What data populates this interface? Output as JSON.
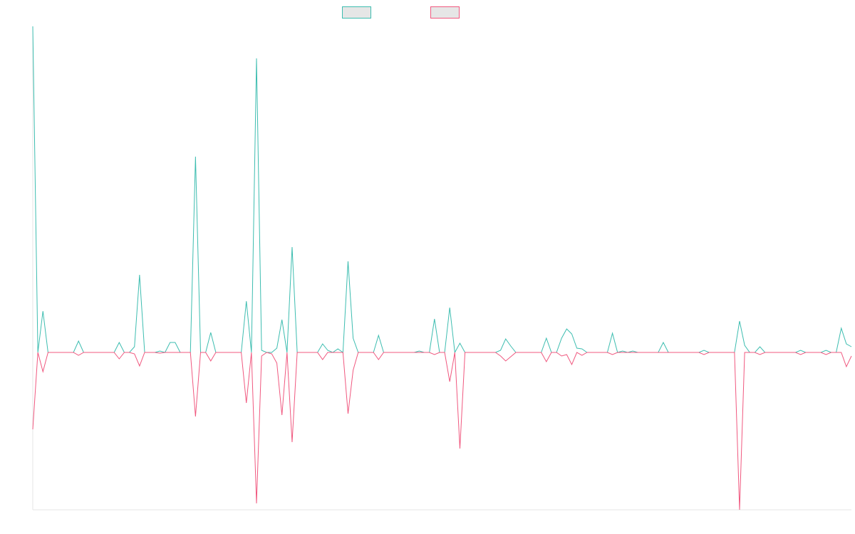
{
  "chart_data": {
    "type": "line",
    "categories": [
      null,
      null,
      null,
      null,
      null,
      null,
      null,
      null,
      null,
      null,
      null,
      null,
      null,
      null,
      null,
      null,
      null,
      null,
      null,
      null,
      null,
      null,
      null,
      null,
      null,
      null,
      null,
      null,
      null,
      null,
      null,
      null,
      null,
      null,
      null,
      null,
      null,
      null,
      null,
      null,
      null,
      null,
      null,
      null,
      null,
      null,
      null,
      null,
      null,
      null,
      null,
      null,
      null,
      null,
      null,
      null,
      null,
      null,
      null,
      null,
      null,
      null,
      null,
      null,
      null,
      null,
      null,
      null,
      null,
      null,
      null,
      null,
      null,
      null,
      null,
      null,
      null,
      null,
      null,
      null,
      null,
      null,
      null,
      null,
      null,
      null,
      null,
      null,
      null,
      null,
      null,
      null,
      null,
      null,
      null,
      null,
      null,
      null,
      null,
      null,
      null,
      null,
      null,
      null,
      null,
      null,
      null,
      null,
      null,
      null,
      null,
      null,
      null,
      null,
      null,
      null,
      null,
      null,
      null,
      null,
      null,
      null,
      null,
      null,
      null,
      null,
      null,
      null,
      null,
      null,
      null,
      null,
      null,
      null,
      null,
      null,
      null,
      null,
      null,
      null,
      null,
      null,
      null,
      null,
      null,
      null,
      null,
      null,
      null,
      null,
      null,
      null,
      null,
      null,
      null,
      null,
      null,
      null,
      null,
      null,
      null,
      null
    ],
    "series": [
      {
        "color": "#3dbdb0",
        "values": [
          458,
          0,
          58,
          0,
          0,
          0,
          0,
          0,
          0,
          16,
          0,
          0,
          0,
          0,
          0,
          0,
          0,
          14,
          0,
          0,
          8,
          109,
          0,
          0,
          0,
          2,
          0,
          14,
          14,
          0,
          0,
          0,
          275,
          0,
          0,
          28,
          0,
          0,
          0,
          0,
          0,
          0,
          72,
          0,
          413,
          3,
          0,
          0,
          6,
          46,
          0,
          148,
          0,
          0,
          0,
          0,
          0,
          12,
          3,
          0,
          5,
          0,
          128,
          20,
          0,
          0,
          0,
          0,
          24,
          0,
          0,
          0,
          0,
          0,
          0,
          0,
          2,
          0,
          0,
          47,
          0,
          0,
          63,
          0,
          13,
          0,
          0,
          0,
          0,
          0,
          0,
          0,
          3,
          19,
          9,
          0,
          0,
          0,
          0,
          0,
          0,
          20,
          0,
          0,
          20,
          33,
          26,
          6,
          5,
          0,
          0,
          0,
          0,
          0,
          27,
          0,
          2,
          0,
          2,
          0,
          0,
          0,
          0,
          0,
          14,
          0,
          0,
          0,
          0,
          0,
          0,
          0,
          3,
          0,
          0,
          0,
          0,
          0,
          0,
          44,
          10,
          0,
          0,
          8,
          0,
          0,
          0,
          0,
          0,
          0,
          0,
          3,
          0,
          0,
          0,
          0,
          3,
          0,
          0,
          34,
          12,
          8
        ]
      },
      {
        "color": "#f0587f",
        "values": [
          -108,
          0,
          -27,
          0,
          0,
          0,
          0,
          0,
          0,
          -4,
          0,
          0,
          0,
          0,
          0,
          0,
          0,
          -9,
          0,
          0,
          -2,
          -19,
          0,
          0,
          0,
          -1,
          0,
          0,
          0,
          0,
          0,
          0,
          -90,
          0,
          0,
          -12,
          0,
          0,
          0,
          0,
          0,
          0,
          -71,
          0,
          -212,
          -5,
          0,
          -2,
          -15,
          -88,
          0,
          -126,
          0,
          0,
          0,
          0,
          0,
          -10,
          0,
          0,
          0,
          0,
          -86,
          -25,
          0,
          0,
          0,
          0,
          -10,
          0,
          0,
          0,
          0,
          0,
          0,
          0,
          0,
          0,
          0,
          -3,
          0,
          0,
          -41,
          0,
          -135,
          0,
          0,
          0,
          0,
          0,
          0,
          0,
          -5,
          -12,
          -6,
          0,
          0,
          0,
          0,
          0,
          0,
          -13,
          0,
          0,
          -5,
          -3,
          -17,
          0,
          -4,
          0,
          0,
          0,
          0,
          0,
          -3,
          0,
          0,
          0,
          0,
          0,
          0,
          0,
          0,
          0,
          0,
          0,
          0,
          0,
          0,
          0,
          0,
          0,
          -3,
          0,
          0,
          0,
          0,
          0,
          0,
          -221,
          0,
          0,
          0,
          -3,
          0,
          0,
          0,
          0,
          0,
          0,
          0,
          -3,
          0,
          0,
          0,
          0,
          -3,
          0,
          0,
          0,
          -20,
          -5
        ]
      }
    ],
    "ylim": [
      -221,
      458
    ]
  }
}
